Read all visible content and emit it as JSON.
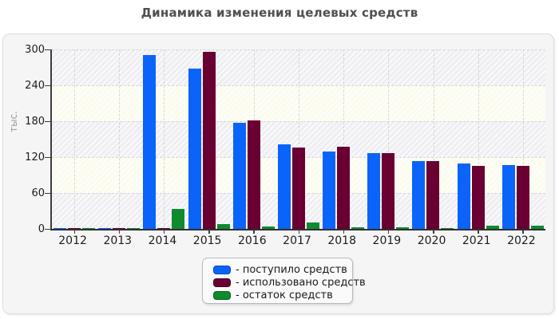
{
  "title": "Динамика изменения целевых средств",
  "chart_data": {
    "type": "bar",
    "title": "Динамика изменения целевых средств",
    "ylabel": "тыс.",
    "xlabel": "",
    "categories": [
      "2012",
      "2013",
      "2014",
      "2015",
      "2016",
      "2017",
      "2018",
      "2019",
      "2020",
      "2021",
      "2022"
    ],
    "series": [
      {
        "key": "received",
        "name": "поступило средств",
        "color": "#0a64fa",
        "border": "#0846b4",
        "values": [
          2,
          2,
          291,
          268,
          178,
          142,
          129,
          127,
          113,
          110,
          107
        ]
      },
      {
        "key": "used",
        "name": "использовано средств",
        "color": "#690031",
        "border": "#44001f",
        "values": [
          2,
          2,
          2,
          296,
          181,
          136,
          138,
          127,
          114,
          105,
          106
        ]
      },
      {
        "key": "remainder",
        "name": "остаток средств",
        "color": "#0e8a2f",
        "border": "#09641f",
        "values": [
          2,
          2,
          34,
          8,
          4,
          11,
          3,
          3,
          2,
          5,
          6
        ]
      }
    ],
    "ylim": [
      0,
      300
    ],
    "yticks": [
      0,
      60,
      120,
      180,
      240,
      300
    ],
    "grid": true,
    "legend_position": "bottom"
  },
  "legend": {
    "items": [
      "- поступило средств",
      "- использовано средств",
      "- остаток средств"
    ]
  }
}
